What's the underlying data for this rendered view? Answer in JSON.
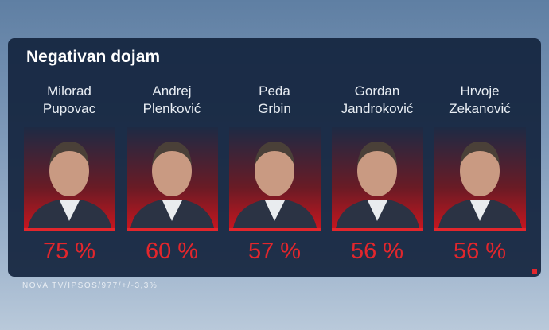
{
  "title": "Negativan dojam",
  "people": [
    {
      "first_name": "Milorad",
      "last_name": "Pupovac",
      "value": "75 %"
    },
    {
      "first_name": "Andrej",
      "last_name": "Plenković",
      "value": "60 %"
    },
    {
      "first_name": "Peđa",
      "last_name": "Grbin",
      "value": "57 %"
    },
    {
      "first_name": "Gordan",
      "last_name": "Jandroković",
      "value": "56 %"
    },
    {
      "first_name": "Hrvoje",
      "last_name": "Zekanović",
      "value": "56 %"
    }
  ],
  "source": "NOVA TV/IPSOS/977/+/-3,3%"
}
